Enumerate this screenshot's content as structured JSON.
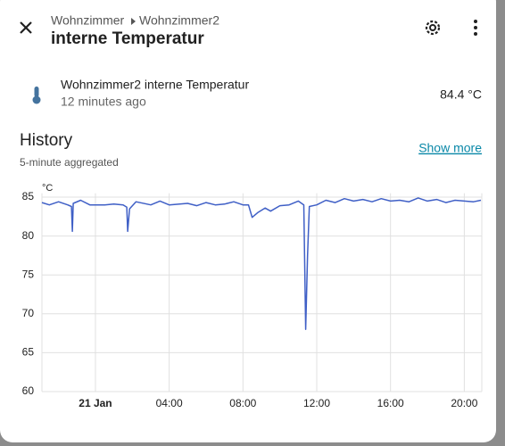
{
  "header": {
    "breadcrumb": [
      "Wohnzimmer",
      "Wohnzimmer2"
    ],
    "title": "interne Temperatur"
  },
  "entity": {
    "name": "Wohnzimmer2 interne Temperatur",
    "last_changed": "12 minutes ago",
    "state": "84.4 °C"
  },
  "history": {
    "title": "History",
    "subtitle": "5-minute aggregated",
    "link": "Show more"
  },
  "chart_data": {
    "type": "line",
    "y_unit": "°C",
    "color": "#3f5fc6",
    "grid": true,
    "x": [
      -2.9,
      -2.5,
      -2.0,
      -1.5,
      -1.3,
      -1.25,
      -1.2,
      -0.8,
      -0.3,
      0.5,
      1.0,
      1.5,
      1.7,
      1.75,
      1.85,
      2.2,
      3.0,
      3.5,
      4.0,
      5.0,
      5.5,
      6.0,
      6.5,
      7.0,
      7.5,
      8.0,
      8.3,
      8.5,
      8.8,
      9.2,
      9.5,
      10.0,
      10.5,
      11.0,
      11.3,
      11.4,
      11.5,
      11.6,
      12.0,
      12.5,
      13.0,
      13.5,
      14.0,
      14.5,
      15.0,
      15.5,
      16.0,
      16.5,
      17.0,
      17.5,
      18.0,
      18.5,
      19.0,
      19.5,
      20.0,
      20.5,
      20.9
    ],
    "values": [
      84.3,
      84.0,
      84.4,
      84.0,
      83.8,
      80.6,
      84.2,
      84.6,
      84.0,
      84.0,
      84.1,
      84.0,
      83.7,
      80.6,
      83.5,
      84.4,
      84.0,
      84.5,
      84.0,
      84.2,
      83.9,
      84.3,
      84.0,
      84.1,
      84.4,
      84.0,
      84.0,
      82.4,
      83.0,
      83.6,
      83.2,
      83.9,
      84.0,
      84.5,
      84.0,
      68.0,
      77.5,
      83.8,
      84.0,
      84.6,
      84.3,
      84.8,
      84.5,
      84.7,
      84.4,
      84.8,
      84.5,
      84.6,
      84.4,
      84.9,
      84.5,
      84.7,
      84.3,
      84.6,
      84.5,
      84.4,
      84.6
    ],
    "xlim": [
      -2.9,
      20.95
    ],
    "xticks": [
      {
        "value": 0,
        "label": "21 Jan"
      },
      {
        "value": 4,
        "label": "04:00"
      },
      {
        "value": 8,
        "label": "08:00"
      },
      {
        "value": 12,
        "label": "12:00"
      },
      {
        "value": 16,
        "label": "16:00"
      },
      {
        "value": 20,
        "label": "20:00"
      }
    ],
    "ylim": [
      60,
      85.5
    ],
    "yticks": [
      60,
      65,
      70,
      75,
      80,
      85
    ]
  }
}
